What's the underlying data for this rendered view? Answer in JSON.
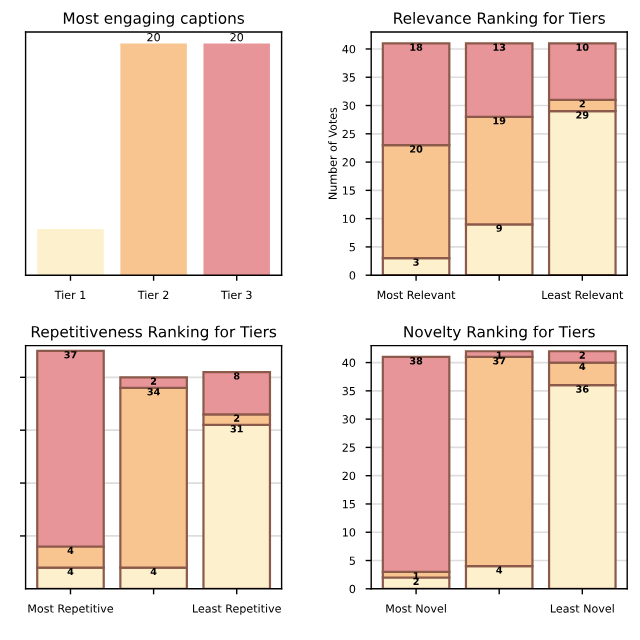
{
  "chart_data": [
    {
      "type": "bar",
      "title": "Most engaging captions",
      "categories": [
        "Tier 1",
        "Tier 2",
        "Tier 3"
      ],
      "values": [
        4,
        20,
        20
      ],
      "colors": [
        "#fdf0cd",
        "#f8c590",
        "#e8959a"
      ],
      "value_labels": [
        null,
        "20",
        "20"
      ],
      "ylim": [
        0,
        21
      ],
      "tick_labels": "x",
      "grid": false
    },
    {
      "type": "bar",
      "title": "Relevance Ranking for Tiers",
      "ylabel": "Number of Votes",
      "categories": [
        "Most Relevant",
        null,
        "Least Relevant"
      ],
      "stacked": true,
      "series": [
        {
          "color": "#fdf0cd",
          "values": [
            3,
            9,
            29
          ]
        },
        {
          "color": "#f8c590",
          "values": [
            20,
            19,
            2
          ]
        },
        {
          "color": "#e8959a",
          "values": [
            18,
            13,
            10
          ]
        }
      ],
      "ylim": [
        0,
        43
      ],
      "yticks": [
        0,
        5,
        10,
        15,
        20,
        25,
        30,
        35,
        40
      ],
      "grid": "y",
      "data_labels": true
    },
    {
      "type": "bar",
      "title": "Repetitiveness Ranking for Tiers",
      "categories": [
        "Most Repetitive",
        null,
        "Least Repetitive"
      ],
      "stacked": true,
      "series": [
        {
          "color": "#fdf0cd",
          "values": [
            4,
            4,
            31
          ]
        },
        {
          "color": "#f8c590",
          "values": [
            4,
            34,
            2
          ]
        },
        {
          "color": "#e8959a",
          "values": [
            37,
            2,
            8
          ]
        }
      ],
      "ylim": [
        0,
        46
      ],
      "yticks": [
        {
          "value": 10,
          "label": null
        },
        {
          "value": 20,
          "label": null
        },
        {
          "value": 30,
          "label": null
        },
        {
          "value": 40,
          "label": null
        }
      ],
      "tick_labels": "x",
      "grid": "y",
      "data_labels": true
    },
    {
      "type": "bar",
      "title": "Novelty Ranking for Tiers",
      "categories": [
        "Most Novel",
        null,
        "Least Novel"
      ],
      "stacked": true,
      "series": [
        {
          "color": "#fdf0cd",
          "values": [
            2,
            4,
            36
          ]
        },
        {
          "color": "#f8c590",
          "values": [
            1,
            37,
            4
          ]
        },
        {
          "color": "#e8959a",
          "values": [
            38,
            1,
            2
          ]
        }
      ],
      "ylim": [
        0,
        43
      ],
      "yticks": [
        0,
        5,
        10,
        15,
        20,
        25,
        30,
        35,
        40
      ],
      "grid": "y",
      "data_labels": true
    }
  ]
}
